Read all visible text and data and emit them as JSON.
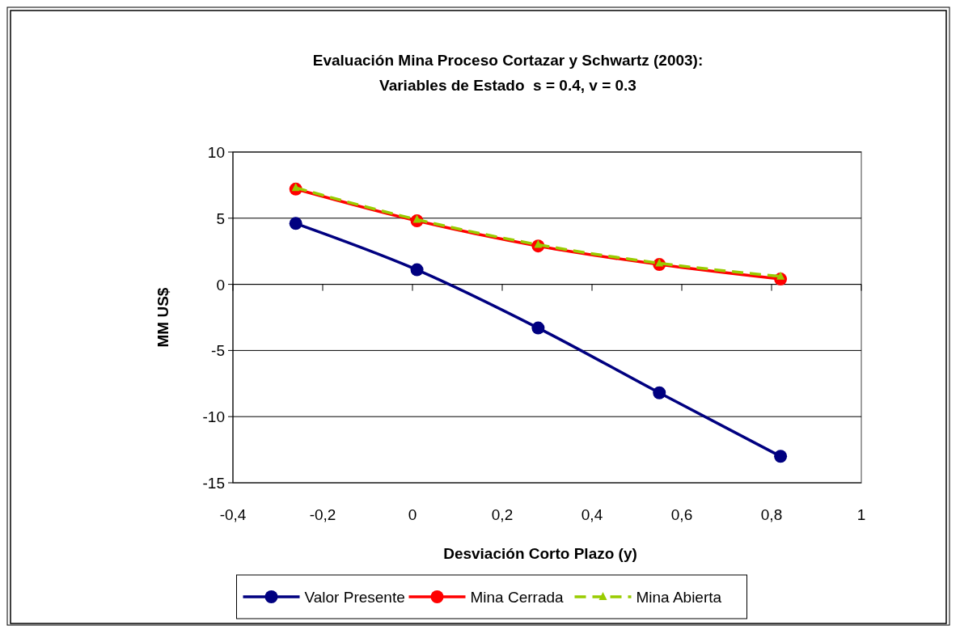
{
  "chart_data": {
    "type": "line",
    "title": "Evaluación Mina Proceso Cortazar y Schwartz (2003):",
    "subtitle": "Variables de Estado  s = 0.4, v = 0.3",
    "xlabel": "Desviación Corto Plazo (y)",
    "ylabel": "MM US$",
    "x": [
      -0.26,
      0.01,
      0.28,
      0.55,
      0.82
    ],
    "series": [
      {
        "name": "Valor Presente",
        "color": "#000080",
        "values": [
          4.6,
          1.1,
          -3.3,
          -8.2,
          -13.0
        ],
        "marker": "circle",
        "line_style": "solid"
      },
      {
        "name": "Mina Cerrada",
        "color": "#ff0000",
        "values": [
          7.2,
          4.8,
          2.9,
          1.5,
          0.4
        ],
        "marker": "circle",
        "line_style": "solid"
      },
      {
        "name": "Mina Abierta",
        "color": "#99cc00",
        "values": [
          7.3,
          4.9,
          3.0,
          1.6,
          0.6
        ],
        "marker": "triangle",
        "line_style": "dashed"
      }
    ],
    "xlim": [
      -0.4,
      1
    ],
    "ylim": [
      -15,
      10
    ],
    "xticks": [
      {
        "value": -0.4,
        "label": "-0,4"
      },
      {
        "value": -0.2,
        "label": "-0,2"
      },
      0,
      {
        "value": 0.2,
        "label": "0,2"
      },
      {
        "value": 0.4,
        "label": "0,4"
      },
      {
        "value": 0.6,
        "label": "0,6"
      },
      {
        "value": 0.8,
        "label": "0,8"
      },
      1
    ],
    "yticks": [
      -15,
      -10,
      -5,
      0,
      5,
      10
    ],
    "grid": "y",
    "legend": "bottom"
  }
}
